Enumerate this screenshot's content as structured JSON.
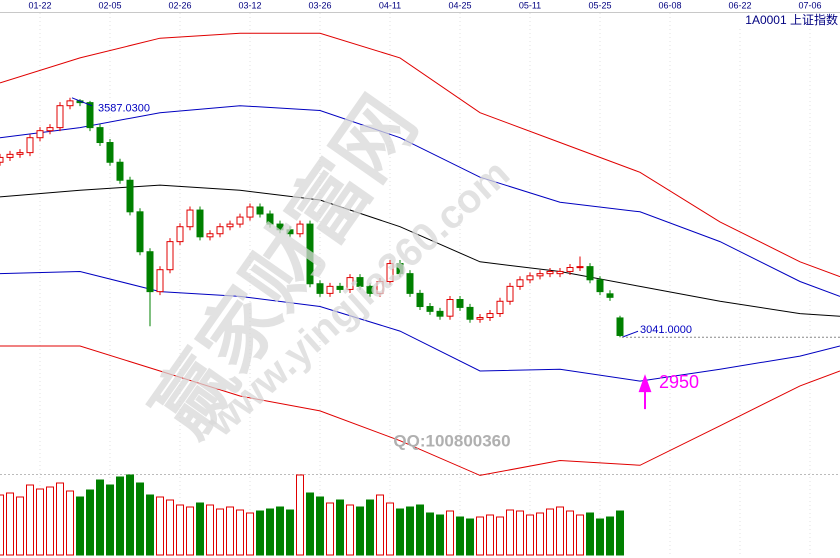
{
  "chart_data": {
    "type": "candlestick",
    "symbol": "1A0001 上证指数",
    "watermark": "赢家财富网",
    "watermark_url": "www.yingjia360.com",
    "contact": "QQ:100800360",
    "xlim": [
      0,
      84
    ],
    "ylim": [
      2720,
      3810
    ],
    "xticks": [
      {
        "value": 4,
        "label": "01-22"
      },
      {
        "value": 11,
        "label": "02-05"
      },
      {
        "value": 18,
        "label": "02-26"
      },
      {
        "value": 25,
        "label": "03-12"
      },
      {
        "value": 32,
        "label": "03-26"
      },
      {
        "value": 39,
        "label": "04-11"
      },
      {
        "value": 46,
        "label": "04-25"
      },
      {
        "value": 53,
        "label": "05-11"
      },
      {
        "value": 60,
        "label": "05-25"
      },
      {
        "value": 67,
        "label": "06-08"
      },
      {
        "value": 74,
        "label": "06-22"
      },
      {
        "value": 81,
        "label": "07-06"
      }
    ],
    "grid": true,
    "up_color": "#e00000",
    "down_color": "#008000",
    "open": [
      3440,
      3451,
      3458,
      3462,
      3496,
      3512,
      3519,
      3569,
      3580,
      3576,
      3519,
      3485,
      3440,
      3399,
      3327,
      3236,
      3145,
      3195,
      3259,
      3293,
      3331,
      3270,
      3277,
      3293,
      3299,
      3315,
      3338,
      3322,
      3299,
      3286,
      3277,
      3299,
      3163,
      3141,
      3157,
      3150,
      3177,
      3157,
      3141,
      3168,
      3209,
      3186,
      3141,
      3111,
      3100,
      3089,
      3127,
      3109,
      3082,
      3086,
      3095,
      3123,
      3157,
      3172,
      3181,
      3186,
      3186,
      3191,
      3200,
      3202,
      3172,
      3140,
      3085
    ],
    "high": [
      3459,
      3466,
      3470,
      3504,
      3520,
      3527,
      3577,
      3587.03,
      3584,
      3580,
      3527,
      3493,
      3448,
      3407,
      3335,
      3244,
      3203,
      3267,
      3301,
      3339,
      3339,
      3285,
      3301,
      3307,
      3323,
      3346,
      3346,
      3330,
      3307,
      3294,
      3307,
      3307,
      3171,
      3165,
      3165,
      3185,
      3185,
      3165,
      3176,
      3217,
      3217,
      3194,
      3149,
      3119,
      3108,
      3135,
      3135,
      3117,
      3094,
      3103,
      3131,
      3165,
      3180,
      3189,
      3194,
      3199,
      3199,
      3208,
      3225,
      3210,
      3180,
      3148,
      3090
    ],
    "low": [
      3432,
      3443,
      3450,
      3454,
      3488,
      3504,
      3511,
      3561,
      3568,
      3511,
      3477,
      3432,
      3391,
      3319,
      3228,
      3066,
      3137,
      3187,
      3251,
      3285,
      3262,
      3262,
      3269,
      3285,
      3291,
      3307,
      3314,
      3291,
      3278,
      3269,
      3269,
      3155,
      3133,
      3133,
      3142,
      3142,
      3149,
      3133,
      3133,
      3160,
      3178,
      3133,
      3103,
      3092,
      3081,
      3081,
      3101,
      3074,
      3074,
      3078,
      3087,
      3115,
      3149,
      3164,
      3173,
      3178,
      3178,
      3183,
      3192,
      3164,
      3137,
      3124,
      3041
    ],
    "close": [
      3451,
      3458,
      3462,
      3496,
      3512,
      3519,
      3569,
      3580,
      3576,
      3519,
      3485,
      3440,
      3399,
      3327,
      3236,
      3145,
      3195,
      3259,
      3293,
      3331,
      3270,
      3277,
      3293,
      3299,
      3315,
      3338,
      3322,
      3299,
      3286,
      3277,
      3299,
      3163,
      3141,
      3157,
      3150,
      3177,
      3157,
      3141,
      3168,
      3209,
      3186,
      3141,
      3111,
      3100,
      3089,
      3127,
      3109,
      3082,
      3086,
      3095,
      3123,
      3157,
      3172,
      3181,
      3186,
      3191,
      3191,
      3200,
      3202,
      3172,
      3145,
      3132,
      3045
    ],
    "volume": [
      60,
      62,
      58,
      70,
      66,
      68,
      72,
      64,
      58,
      65,
      75,
      70,
      78,
      80,
      72,
      60,
      58,
      55,
      50,
      48,
      52,
      50,
      46,
      48,
      45,
      42,
      44,
      46,
      48,
      45,
      80,
      62,
      58,
      52,
      55,
      50,
      48,
      55,
      60,
      52,
      46,
      48,
      50,
      42,
      40,
      44,
      38,
      36,
      38,
      40,
      38,
      45,
      44,
      40,
      42,
      46,
      48,
      44,
      40,
      42,
      36,
      38,
      44
    ],
    "vlim": [
      0,
      85
    ],
    "band_x": [
      0,
      8,
      16,
      24,
      32,
      40,
      48,
      56,
      64,
      72,
      80,
      84
    ],
    "bands": [
      {
        "color": "#e00000",
        "values": [
          3621,
          3678,
          3723,
          3734,
          3734,
          3678,
          3553,
          3485,
          3417,
          3304,
          3213,
          3179
        ]
      },
      {
        "color": "#0000c0",
        "values": [
          3496,
          3519,
          3553,
          3569,
          3558,
          3496,
          3406,
          3349,
          3327,
          3259,
          3168,
          3134
        ]
      },
      {
        "color": "#000000",
        "values": [
          3361,
          3376,
          3388,
          3376,
          3354,
          3293,
          3213,
          3191,
          3157,
          3123,
          3095,
          3089
        ]
      },
      {
        "color": "#0000c0",
        "values": [
          3186,
          3191,
          3145,
          3134,
          3111,
          3055,
          2964,
          2968,
          2941,
          2968,
          2998,
          3021
        ]
      },
      {
        "color": "#e00000",
        "values": [
          3021,
          3021,
          2964,
          2907,
          2873,
          2805,
          2726,
          2760,
          2749,
          2839,
          2930,
          2964
        ]
      }
    ],
    "price_marks": [
      {
        "x": 7,
        "value": 3587.03,
        "label": "3587.0300"
      },
      {
        "x": 62,
        "value": 3041,
        "label": "3041.0000"
      }
    ],
    "target": {
      "x": 64.5,
      "value": 2950,
      "color": "#ff00ff"
    }
  }
}
